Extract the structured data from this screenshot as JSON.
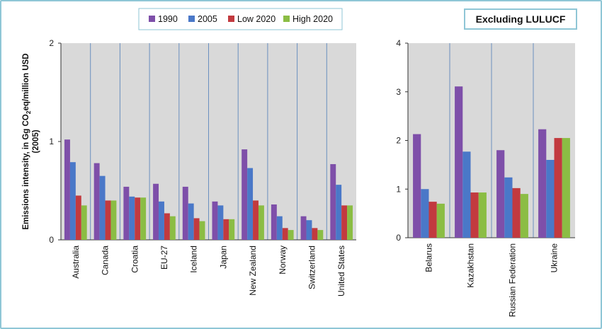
{
  "colors": {
    "1990": "#7e4fa9",
    "2005": "#4a78c8",
    "Low 2020": "#c23a3f",
    "High 2020": "#8bbd44",
    "plot_bg": "#d9d9d9",
    "grid": "#6a8fbf",
    "frame": "#8fc6d6"
  },
  "legend": {
    "entries": [
      "1990",
      "2005",
      "Low 2020",
      "High 2020"
    ],
    "placement": "top-center"
  },
  "chart_data": [
    {
      "type": "bar",
      "title": "",
      "ylabel_main": "Emissions intensity, in Gg CO",
      "ylabel_sub": "2",
      "ylabel_tail": "eq/million USD",
      "ylabel_line2": "(2005)",
      "ylim": [
        0,
        2
      ],
      "yticks": [
        "0",
        "1",
        "2"
      ],
      "categories": [
        "Australia",
        "Canada",
        "Croatia",
        "EU-27",
        "Iceland",
        "Japan",
        "New Zealand",
        "Norway",
        "Switzerland",
        "United States"
      ],
      "series": [
        {
          "name": "1990",
          "values": [
            1.02,
            0.78,
            0.54,
            0.57,
            0.54,
            0.39,
            0.92,
            0.36,
            0.24,
            0.77
          ]
        },
        {
          "name": "2005",
          "values": [
            0.79,
            0.65,
            0.44,
            0.39,
            0.37,
            0.35,
            0.73,
            0.24,
            0.2,
            0.56
          ]
        },
        {
          "name": "Low 2020",
          "values": [
            0.45,
            0.4,
            0.43,
            0.27,
            0.22,
            0.21,
            0.4,
            0.12,
            0.12,
            0.35
          ]
        },
        {
          "name": "High 2020",
          "values": [
            0.35,
            0.4,
            0.43,
            0.24,
            0.19,
            0.21,
            0.35,
            0.1,
            0.1,
            0.35
          ]
        }
      ],
      "grid": "vertical separators"
    },
    {
      "type": "bar",
      "title": "Excluding LULUCF",
      "ylim": [
        0,
        4
      ],
      "yticks": [
        "0",
        "1",
        "2",
        "3",
        "4"
      ],
      "categories": [
        "Belarus",
        "Kazakhstan",
        "Russian Federation",
        "Ukraine"
      ],
      "series": [
        {
          "name": "1990",
          "values": [
            2.13,
            3.11,
            1.8,
            2.23
          ]
        },
        {
          "name": "2005",
          "values": [
            1.0,
            1.77,
            1.24,
            1.6
          ]
        },
        {
          "name": "Low 2020",
          "values": [
            0.74,
            0.93,
            1.02,
            2.05
          ]
        },
        {
          "name": "High 2020",
          "values": [
            0.7,
            0.93,
            0.9,
            2.05
          ]
        }
      ],
      "grid": "vertical separators"
    }
  ]
}
